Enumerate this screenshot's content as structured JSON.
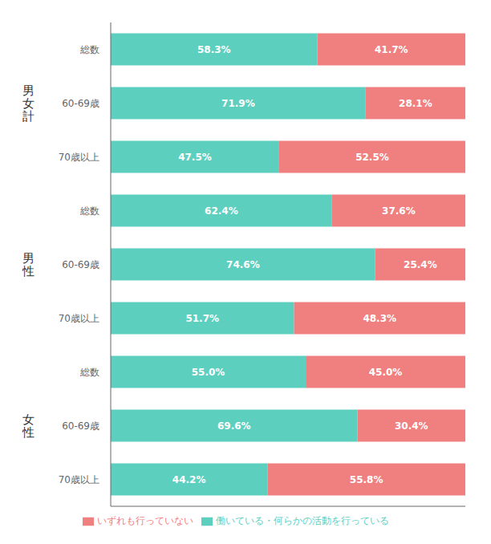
{
  "chart_data": {
    "type": "bar",
    "orientation": "horizontal",
    "stacked": true,
    "data_labels": true,
    "grid": false,
    "legend": "bottom",
    "tick_labels": "y",
    "categories": [
      "総数",
      "60-69歳",
      "70歳以上",
      "総数",
      "60-69歳",
      "70歳以上",
      "総数",
      "60-69歳",
      "70歳以上"
    ],
    "annotations": [
      "男\n女\n計",
      "男\n性",
      "女\n性"
    ],
    "xlim": [
      0,
      100
    ],
    "series": [
      {
        "name": "働いている・何らかの活動を行っている",
        "color": "#5dcfbf",
        "values": [
          58.3,
          71.9,
          47.5,
          62.4,
          74.6,
          51.7,
          55.0,
          69.6,
          44.2
        ],
        "value_labels": [
          "58.3%",
          "71.9%",
          "47.5%",
          "62.4%",
          "74.6%",
          "51.7%",
          "55.0%",
          "69.6%",
          "44.2%"
        ]
      },
      {
        "name": "いずれも行っていない",
        "color": "#f08080",
        "values": [
          41.7,
          28.1,
          52.5,
          37.6,
          25.4,
          48.3,
          45.0,
          30.4,
          55.8
        ],
        "value_labels": [
          "41.7%",
          "28.1%",
          "52.5%",
          "37.6%",
          "25.4%",
          "48.3%",
          "45.0%",
          "30.4%",
          "55.8%"
        ]
      }
    ]
  }
}
